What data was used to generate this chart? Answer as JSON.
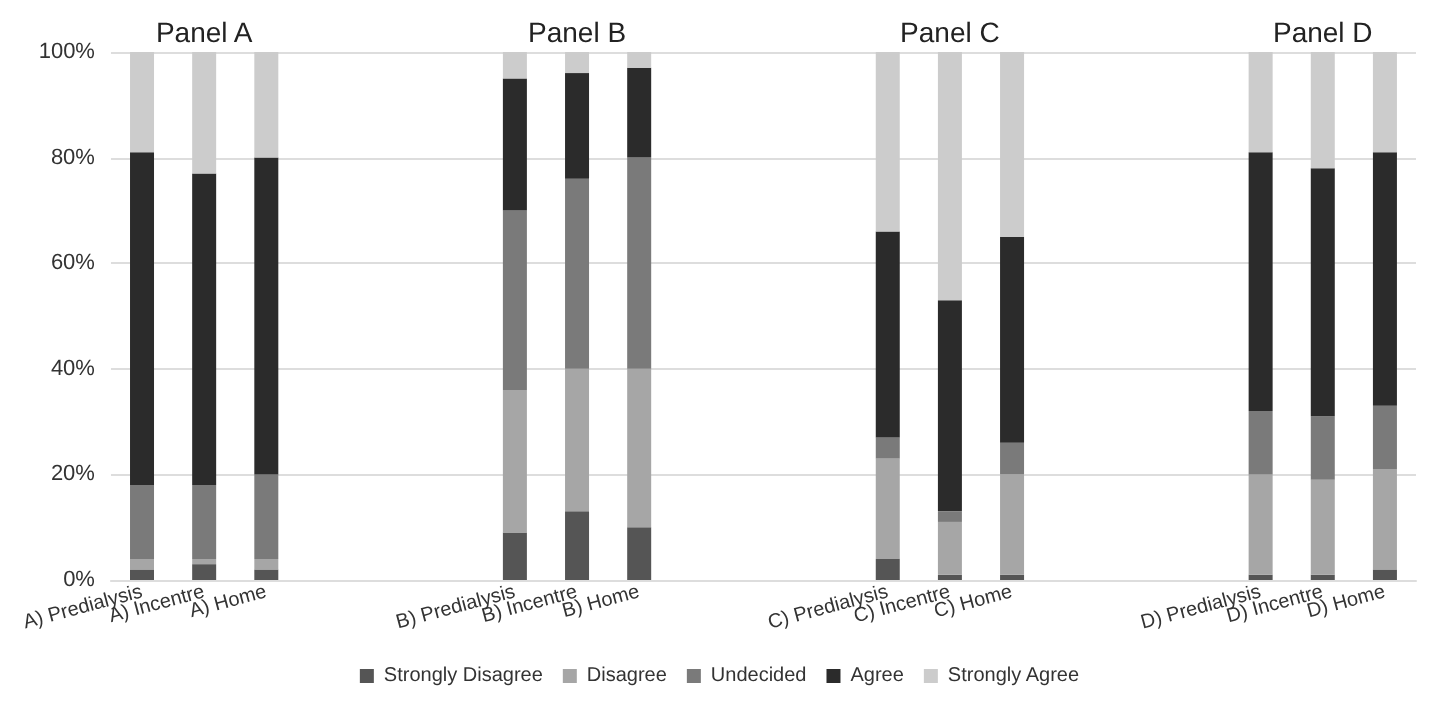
{
  "chart_data": {
    "type": "bar",
    "stacked": true,
    "categories": [
      "A) Predialysis",
      "A) Incentre",
      "A) Home",
      null,
      null,
      null,
      "B) Predialysis",
      "B) Incentre",
      "B) Home",
      null,
      null,
      null,
      "C) Predialysis",
      "C) Incentre",
      "C) Home",
      null,
      null,
      null,
      "D) Predialysis",
      "D) Incentre",
      "D) Home"
    ],
    "series": [
      {
        "name": "Strongly Disagree",
        "color": "#555555",
        "values": [
          2,
          3,
          2,
          null,
          null,
          null,
          9,
          13,
          10,
          null,
          null,
          null,
          4,
          1,
          1,
          null,
          null,
          null,
          1,
          1,
          2
        ]
      },
      {
        "name": "Disagree",
        "color": "#a6a6a6",
        "values": [
          2,
          1,
          2,
          null,
          null,
          null,
          27,
          27,
          30,
          null,
          null,
          null,
          19,
          10,
          19,
          null,
          null,
          null,
          19,
          18,
          19
        ]
      },
      {
        "name": "Undecided",
        "color": "#7a7a7a",
        "values": [
          14,
          14,
          16,
          null,
          null,
          null,
          34,
          36,
          40,
          null,
          null,
          null,
          4,
          2,
          6,
          null,
          null,
          null,
          12,
          12,
          12
        ]
      },
      {
        "name": "Agree",
        "color": "#2b2b2b",
        "values": [
          63,
          59,
          60,
          null,
          null,
          null,
          25,
          20,
          17,
          null,
          null,
          null,
          39,
          40,
          39,
          null,
          null,
          null,
          49,
          47,
          48
        ]
      },
      {
        "name": "Strongly Agree",
        "color": "#cccccc",
        "values": [
          19,
          23,
          20,
          null,
          null,
          null,
          5,
          4,
          3,
          null,
          null,
          null,
          34,
          47,
          35,
          null,
          null,
          null,
          19,
          22,
          19
        ]
      }
    ],
    "ylim": [
      0,
      100
    ],
    "yticks": [
      {
        "value": 0,
        "label": "0%"
      },
      {
        "value": 20,
        "label": "20%"
      },
      {
        "value": 40,
        "label": "40%"
      },
      {
        "value": 60,
        "label": "60%"
      },
      {
        "value": 80,
        "label": "80%"
      },
      {
        "value": 100,
        "label": "100%"
      }
    ],
    "grid": "y",
    "legend": "bottom",
    "annotations": [
      {
        "text": "Panel A",
        "x": "A) Incentre",
        "y": 100
      },
      {
        "text": "Panel B",
        "x": "B) Incentre",
        "y": 100
      },
      {
        "text": "Panel C",
        "x": "C) Incentre",
        "y": 100
      },
      {
        "text": "Panel D",
        "x": "D) Incentre",
        "y": 100
      }
    ]
  }
}
